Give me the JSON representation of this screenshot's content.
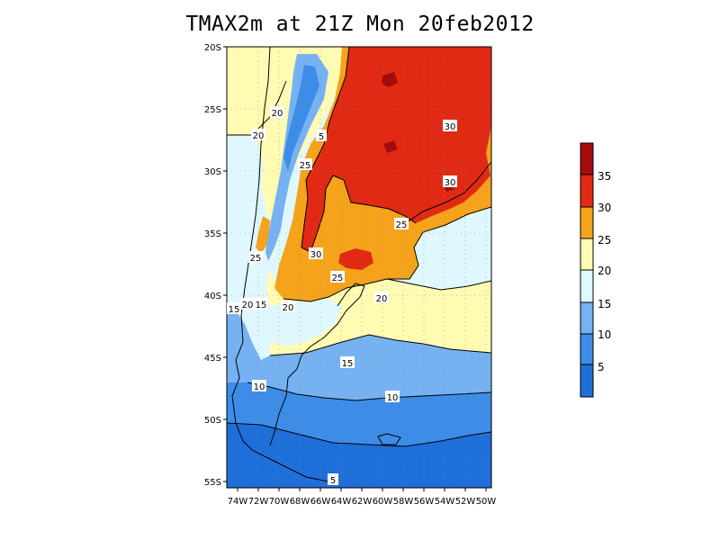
{
  "title": "TMAX2m at 21Z Mon 20feb2012",
  "map": {
    "variable": "TMAX2m",
    "lat_range": [
      "56S",
      "20S"
    ],
    "lon_range": [
      "74W",
      "50W"
    ],
    "y_ticks": [
      "20S",
      "25S",
      "30S",
      "35S",
      "40S",
      "45S",
      "50S",
      "55S"
    ],
    "x_ticks": [
      "74W",
      "72W",
      "70W",
      "68W",
      "66W",
      "64W",
      "62W",
      "60W",
      "58W",
      "56W",
      "54W",
      "52W",
      "50W"
    ],
    "contour_labels": [
      "20",
      "20",
      "5",
      "25",
      "30",
      "30",
      "25",
      "25",
      "30",
      "25",
      "20",
      "15",
      "20",
      "15",
      "20",
      "15",
      "10",
      "10",
      "5"
    ]
  },
  "colorbar": {
    "labels": [
      "5",
      "10",
      "15",
      "20",
      "25",
      "30",
      "35"
    ],
    "colors": [
      "#1e6fd9",
      "#3d8ce8",
      "#76b2f2",
      "#dff8ff",
      "#fffbb3",
      "#f5a31a",
      "#e02a14",
      "#a50c0c"
    ]
  },
  "colors": {
    "ocean_south": "#1e6fd9",
    "band_5_10": "#3d8ce8",
    "band_10_15": "#76b2f2",
    "band_15_20": "#dff8ff",
    "band_20_25": "#fffbb3",
    "band_25_30": "#f5a31a",
    "band_30_35": "#e02a14",
    "band_35_plus": "#a50c0c"
  }
}
